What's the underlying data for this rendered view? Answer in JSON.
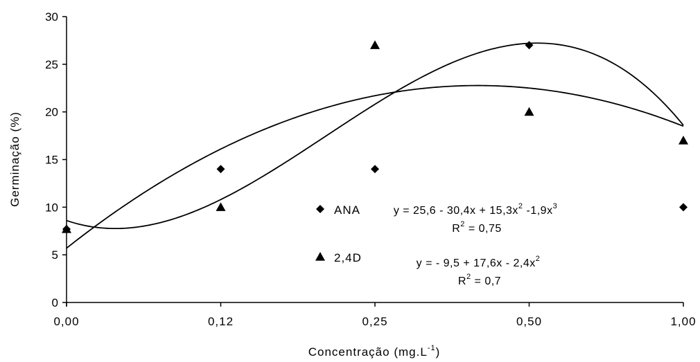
{
  "chart_data": {
    "type": "scatter",
    "xlabel": "Concentração (mg.L",
    "xlabel_sup": "-1",
    "xlabel_tail": ")",
    "ylabel": "Germinação (%)",
    "categories": [
      "0,00",
      "0,12",
      "0,25",
      "0,50",
      "1,00"
    ],
    "x_positions": [
      1,
      2,
      3,
      4,
      5
    ],
    "yticks": [
      "0",
      "5",
      "10",
      "15",
      "20",
      "25",
      "30"
    ],
    "ylim": [
      0,
      30
    ],
    "grid": false,
    "legend_placement": "center-right",
    "series": [
      {
        "name": "ANA",
        "marker": "diamond",
        "values": [
          7.7,
          14,
          14,
          27,
          10
        ],
        "trend": {
          "type": "poly3",
          "coeffs": [
            25.6,
            -30.4,
            15.3,
            -1.9
          ]
        },
        "equation": {
          "lead": "y = 25,6 - 30,4x  + 15,3x",
          "sup1": "2",
          "mid": " -1,9x",
          "sup2": "3"
        },
        "r2": {
          "lead": "R",
          "sup": "2",
          "tail": " = 0,75"
        }
      },
      {
        "name": "2,4D",
        "marker": "triangle",
        "values": [
          7.7,
          10,
          27,
          20,
          17
        ],
        "trend": {
          "type": "poly2",
          "coeffs": [
            -9.5,
            17.6,
            -2.4
          ]
        },
        "equation": {
          "lead": "y =  - 9,5  + 17,6x - 2,4x",
          "sup1": "2",
          "mid": "",
          "sup2": ""
        },
        "r2": {
          "lead": "R",
          "sup": "2",
          "tail": " = 0,7"
        }
      }
    ]
  }
}
